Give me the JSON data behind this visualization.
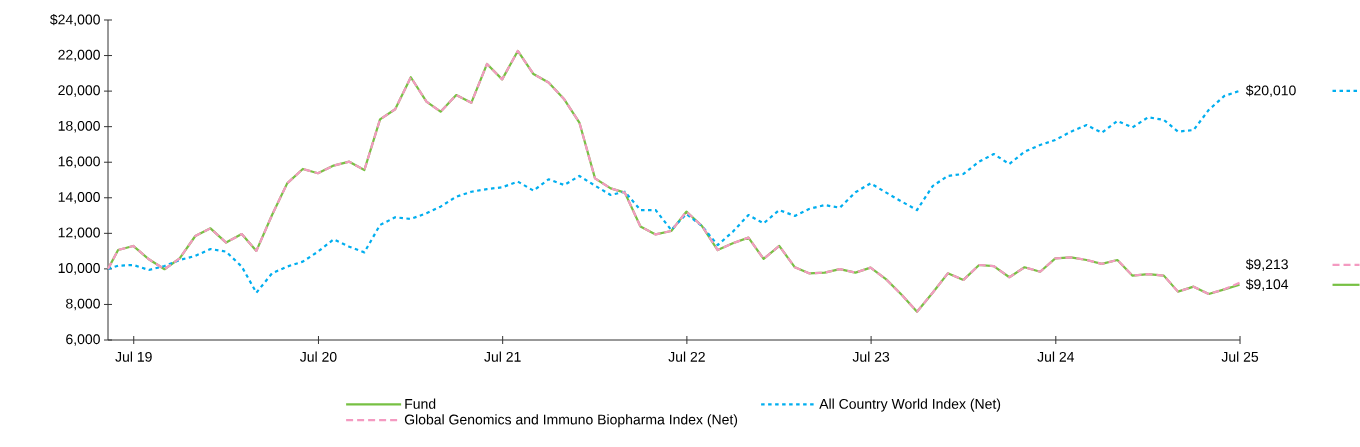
{
  "chart_data": {
    "type": "line",
    "x": [
      "2019-05-11",
      "2019-05-31",
      "2019-06-30",
      "2019-07-31",
      "2019-08-31",
      "2019-09-30",
      "2019-10-31",
      "2019-11-30",
      "2019-12-31",
      "2020-01-31",
      "2020-02-29",
      "2020-03-31",
      "2020-04-30",
      "2020-05-31",
      "2020-06-30",
      "2020-07-31",
      "2020-08-31",
      "2020-09-30",
      "2020-10-31",
      "2020-11-30",
      "2020-12-31",
      "2021-01-31",
      "2021-02-28",
      "2021-03-31",
      "2021-04-30",
      "2021-05-31",
      "2021-06-30",
      "2021-07-31",
      "2021-08-31",
      "2021-09-30",
      "2021-10-31",
      "2021-11-30",
      "2021-12-31",
      "2022-01-31",
      "2022-02-28",
      "2022-03-31",
      "2022-04-30",
      "2022-05-31",
      "2022-06-30",
      "2022-07-31",
      "2022-08-31",
      "2022-09-30",
      "2022-10-31",
      "2022-11-30",
      "2022-12-31",
      "2023-01-31",
      "2023-02-28",
      "2023-03-31",
      "2023-04-30",
      "2023-05-31",
      "2023-06-30",
      "2023-07-31",
      "2023-08-31",
      "2023-09-30",
      "2023-10-31",
      "2023-11-30",
      "2023-12-31",
      "2024-01-31",
      "2024-02-29",
      "2024-03-31",
      "2024-04-30",
      "2024-05-31",
      "2024-06-30",
      "2024-07-31",
      "2024-08-31",
      "2024-09-30",
      "2024-10-31",
      "2024-11-30",
      "2024-12-31",
      "2025-01-31",
      "2025-02-28",
      "2025-03-31",
      "2025-04-30",
      "2025-05-31",
      "2025-06-30"
    ],
    "series": [
      {
        "name": "Fund",
        "color": "#77c043",
        "line_style": "solid",
        "values": [
          10000,
          11060,
          11290,
          10540,
          9980,
          10590,
          11850,
          12280,
          11480,
          11960,
          11010,
          13030,
          14810,
          15620,
          15380,
          15810,
          16030,
          15560,
          18410,
          18980,
          20780,
          19410,
          18840,
          19780,
          19350,
          21530,
          20660,
          22260,
          20960,
          20480,
          19540,
          18230,
          15090,
          14530,
          14290,
          12380,
          11940,
          12130,
          13220,
          12410,
          11060,
          11440,
          11760,
          10560,
          11290,
          10090,
          9750,
          9790,
          9990,
          9790,
          10070,
          9410,
          8530,
          7590,
          8660,
          9750,
          9380,
          10220,
          10160,
          9530,
          10090,
          9840,
          10590,
          10650,
          10500,
          10280,
          10500,
          9620,
          9710,
          9620,
          8720,
          9000,
          8590,
          8850,
          9104
        ],
        "value_labels": [
          null,
          null,
          null,
          null,
          null,
          null,
          null,
          null,
          null,
          null,
          null,
          null,
          null,
          null,
          null,
          null,
          null,
          null,
          null,
          null,
          null,
          null,
          null,
          null,
          null,
          null,
          null,
          null,
          null,
          null,
          null,
          null,
          null,
          null,
          null,
          null,
          null,
          null,
          null,
          null,
          null,
          null,
          null,
          null,
          null,
          null,
          null,
          null,
          null,
          null,
          null,
          null,
          null,
          null,
          null,
          null,
          null,
          null,
          null,
          null,
          null,
          null,
          null,
          null,
          null,
          null,
          null,
          null,
          null,
          null,
          null,
          null,
          null,
          null,
          "$9,104"
        ]
      },
      {
        "name": "All Country World Index (Net)",
        "color": "#00aeef",
        "line_style": "dotted",
        "values": [
          10000,
          10180,
          10220,
          9940,
          10160,
          10500,
          10730,
          11120,
          10970,
          10130,
          8660,
          9750,
          10130,
          10410,
          10970,
          11660,
          11250,
          10930,
          12470,
          12900,
          12810,
          13130,
          13500,
          14060,
          14340,
          14490,
          14590,
          14910,
          14400,
          15040,
          14720,
          15230,
          14680,
          14160,
          14340,
          13310,
          13310,
          12190,
          13090,
          12410,
          11340,
          12090,
          13030,
          12560,
          13310,
          12980,
          13370,
          13590,
          13440,
          14310,
          14810,
          14290,
          13780,
          13310,
          14660,
          15230,
          15340,
          16030,
          16460,
          15900,
          16590,
          16970,
          17250,
          17720,
          18090,
          17660,
          18320,
          17960,
          18530,
          18380,
          17720,
          17810,
          18940,
          19730,
          20010
        ],
        "value_labels": [
          null,
          null,
          null,
          null,
          null,
          null,
          null,
          null,
          null,
          null,
          null,
          null,
          null,
          null,
          null,
          null,
          null,
          null,
          null,
          null,
          null,
          null,
          null,
          null,
          null,
          null,
          null,
          null,
          null,
          null,
          null,
          null,
          null,
          null,
          null,
          null,
          null,
          null,
          null,
          null,
          null,
          null,
          null,
          null,
          null,
          null,
          null,
          null,
          null,
          null,
          null,
          null,
          null,
          null,
          null,
          null,
          null,
          null,
          null,
          null,
          null,
          null,
          null,
          null,
          null,
          null,
          null,
          null,
          null,
          null,
          null,
          null,
          null,
          null,
          "$20,010"
        ]
      },
      {
        "name": "Global Genomics and Immuno Biopharma Index (Net)",
        "color": "#f49ac1",
        "line_style": "dashed",
        "values": [
          10000,
          11060,
          11290,
          10540,
          9980,
          10590,
          11850,
          12280,
          11480,
          11960,
          11010,
          13030,
          14810,
          15620,
          15380,
          15810,
          16030,
          15560,
          18410,
          18980,
          20780,
          19410,
          18840,
          19780,
          19350,
          21530,
          20660,
          22260,
          20960,
          20480,
          19540,
          18230,
          15090,
          14530,
          14290,
          12380,
          11940,
          12130,
          13220,
          12410,
          11060,
          11440,
          11760,
          10560,
          11290,
          10090,
          9750,
          9790,
          9990,
          9790,
          10070,
          9410,
          8530,
          7590,
          8660,
          9750,
          9380,
          10220,
          10160,
          9530,
          10090,
          9840,
          10590,
          10650,
          10500,
          10280,
          10500,
          9620,
          9710,
          9620,
          8720,
          9000,
          8590,
          8850,
          9213
        ],
        "value_labels": [
          null,
          null,
          null,
          null,
          null,
          null,
          null,
          null,
          null,
          null,
          null,
          null,
          null,
          null,
          null,
          null,
          null,
          null,
          null,
          null,
          null,
          null,
          null,
          null,
          null,
          null,
          null,
          null,
          null,
          null,
          null,
          null,
          null,
          null,
          null,
          null,
          null,
          null,
          null,
          null,
          null,
          null,
          null,
          null,
          null,
          null,
          null,
          null,
          null,
          null,
          null,
          null,
          null,
          null,
          null,
          null,
          null,
          null,
          null,
          null,
          null,
          null,
          null,
          null,
          null,
          null,
          null,
          null,
          null,
          null,
          null,
          null,
          null,
          null,
          "$9,213"
        ]
      }
    ],
    "xlim": [
      "2019-05-11",
      "2025-07-01"
    ],
    "xticks": [
      {
        "value": "2019-07-01",
        "label": "Jul 19"
      },
      {
        "value": "2020-07-01",
        "label": "Jul 20"
      },
      {
        "value": "2021-07-01",
        "label": "Jul 21"
      },
      {
        "value": "2022-07-01",
        "label": "Jul 22"
      },
      {
        "value": "2023-07-01",
        "label": "Jul 23"
      },
      {
        "value": "2024-07-01",
        "label": "Jul 24"
      },
      {
        "value": "2025-07-01",
        "label": "Jul 25"
      }
    ],
    "ylim": [
      6000,
      24000
    ],
    "yticks": [
      {
        "value": 6000,
        "label": "6,000"
      },
      {
        "value": 8000,
        "label": "8,000"
      },
      {
        "value": 10000,
        "label": "10,000"
      },
      {
        "value": 12000,
        "label": "12,000"
      },
      {
        "value": 14000,
        "label": "14,000"
      },
      {
        "value": 16000,
        "label": "16,000"
      },
      {
        "value": 18000,
        "label": "18,000"
      },
      {
        "value": 20000,
        "label": "20,000"
      },
      {
        "value": 22000,
        "label": "22,000"
      },
      {
        "value": 24000,
        "label": "$24,000"
      }
    ],
    "grid": false,
    "legend": "bottom",
    "marker": "none"
  }
}
